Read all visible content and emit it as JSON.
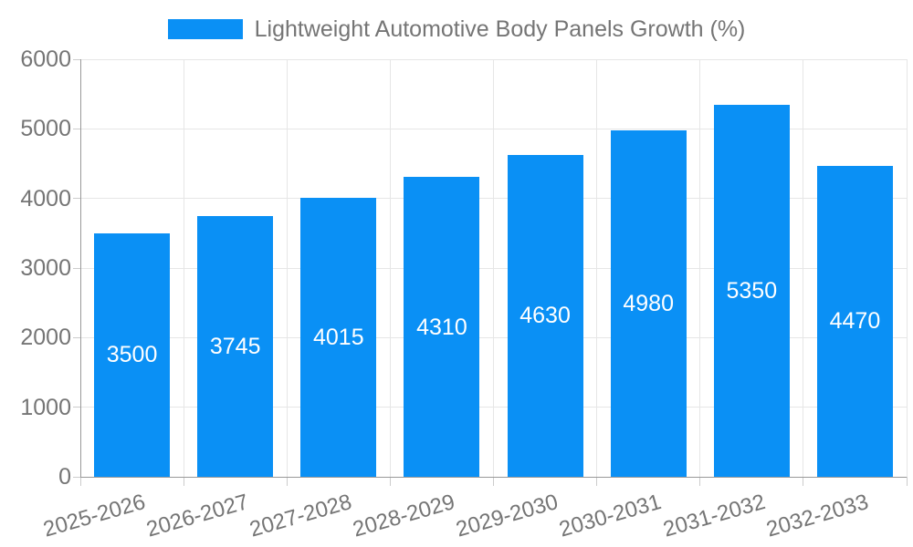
{
  "legend": {
    "label": "Lightweight Automotive Body Panels Growth (%)"
  },
  "colors": {
    "bar": "#0a90f5",
    "axis_line": "#999999",
    "gridline": "#e6e6e6",
    "tick_mark": "#cccccc",
    "tick_label": "#757575",
    "legend_text": "#757575",
    "value_label": "#ffffff",
    "background": "#ffffff"
  },
  "chart_data": {
    "type": "bar",
    "title": "Lightweight Automotive Body Panels Growth (%)",
    "categories": [
      "2025-2026",
      "2026-2027",
      "2027-2028",
      "2028-2029",
      "2029-2030",
      "2030-2031",
      "2031-2032",
      "2032-2033"
    ],
    "values": [
      3500,
      3745,
      4015,
      4310,
      4630,
      4980,
      5350,
      4470
    ],
    "bar_value_labels": [
      "3500",
      "3745",
      "4015",
      "4310",
      "4630",
      "4980",
      "5350",
      "4470"
    ],
    "xlabel": "",
    "ylabel": "",
    "ylim": [
      0,
      6000
    ],
    "yticks": [
      0,
      1000,
      2000,
      3000,
      4000,
      5000,
      6000
    ],
    "ytick_labels": [
      "0",
      "1000",
      "2000",
      "3000",
      "4000",
      "5000",
      "6000"
    ],
    "grid": true,
    "legend_position": "top-center",
    "value_labels_inside_bars": true,
    "x_label_rotation_deg": -16
  }
}
